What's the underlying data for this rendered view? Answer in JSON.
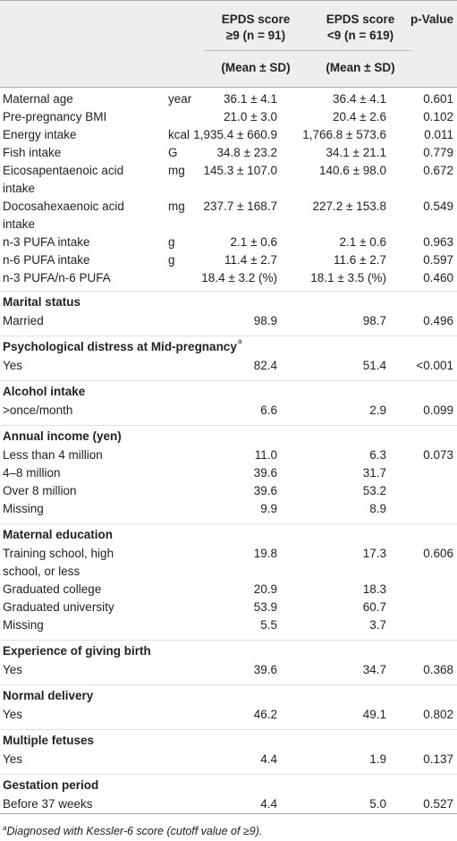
{
  "header": {
    "col1_line1": "EPDS score",
    "col1_line2": "≥9 (n = 91)",
    "col2_line1": "EPDS score",
    "col2_line2": "<9 (n = 619)",
    "col3": "p-Value",
    "sub1": "(Mean ± SD)",
    "sub2": "(Mean ± SD)"
  },
  "rows": [
    {
      "label": "Maternal age",
      "unit": "year",
      "v1": "36.1 ± 4.1",
      "v2": "36.4 ± 4.1",
      "p": "0.601"
    },
    {
      "label": "Pre-pregnancy BMI",
      "unit": "",
      "v1": "21.0 ± 3.0",
      "v2": "20.4 ± 2.6",
      "p": "0.102"
    },
    {
      "label": "Energy intake",
      "unit": "kcal",
      "v1": "1,935.4 ± 660.9",
      "v2": "1,766.8 ± 573.6",
      "p": "0.011"
    },
    {
      "label": "Fish intake",
      "unit": "G",
      "v1": "34.8 ± 23.2",
      "v2": "34.1 ± 21.1",
      "p": "0.779"
    },
    {
      "label": "Eicosapentaenoic acid",
      "label2": "intake",
      "unit": "mg",
      "v1": "145.3 ± 107.0",
      "v2": "140.6 ± 98.0",
      "p": "0.672"
    },
    {
      "label": "Docosahexaenoic acid",
      "label2": "intake",
      "unit": "mg",
      "v1": "237.7 ± 168.7",
      "v2": "227.2 ± 153.8",
      "p": "0.549"
    },
    {
      "label": "n-3 PUFA intake",
      "unit": "g",
      "v1": "2.1 ± 0.6",
      "v2": "2.1 ± 0.6",
      "p": "0.963"
    },
    {
      "label": "n-6 PUFA intake",
      "unit": "g",
      "v1": "11.4 ± 2.7",
      "v2": "11.6 ± 2.7",
      "p": "0.597"
    },
    {
      "label": "n-3 PUFA/n-6 PUFA",
      "unit": "",
      "v1": "18.4 ± 3.2 (%)",
      "v2": "18.1 ± 3.5 (%)",
      "p": "0.460"
    }
  ],
  "sections": [
    {
      "title": "Marital status",
      "rows": [
        {
          "label": "Married",
          "v1": "98.9",
          "v2": "98.7",
          "p": "0.496"
        }
      ]
    },
    {
      "title": "Psychological distress at Mid-pregnancy",
      "sup": "a",
      "rows": [
        {
          "label": "Yes",
          "v1": "82.4",
          "v2": "51.4",
          "p": "<0.001"
        }
      ]
    },
    {
      "title": "Alcohol intake",
      "rows": [
        {
          "label": ">once/month",
          "v1": "6.6",
          "v2": "2.9",
          "p": "0.099"
        }
      ]
    },
    {
      "title": "Annual income (yen)",
      "rows": [
        {
          "label": "Less than 4 million",
          "v1": "11.0",
          "v2": "6.3",
          "p": "0.073"
        },
        {
          "label": "4–8 million",
          "v1": "39.6",
          "v2": "31.7",
          "p": ""
        },
        {
          "label": "Over 8 million",
          "v1": "39.6",
          "v2": "53.2",
          "p": ""
        },
        {
          "label": "Missing",
          "v1": "9.9",
          "v2": "8.9",
          "p": ""
        }
      ]
    },
    {
      "title": "Maternal education",
      "rows": [
        {
          "label": "Training school, high",
          "label2": "school, or less",
          "v1": "19.8",
          "v2": "17.3",
          "p": "0.606"
        },
        {
          "label": "Graduated college",
          "v1": "20.9",
          "v2": "18.3",
          "p": ""
        },
        {
          "label": "Graduated university",
          "v1": "53.9",
          "v2": "60.7",
          "p": ""
        },
        {
          "label": "Missing",
          "v1": "5.5",
          "v2": "3.7",
          "p": ""
        }
      ]
    },
    {
      "title": "Experience of giving birth",
      "rows": [
        {
          "label": "Yes",
          "v1": "39.6",
          "v2": "34.7",
          "p": "0.368"
        }
      ]
    },
    {
      "title": "Normal delivery",
      "rows": [
        {
          "label": "Yes",
          "v1": "46.2",
          "v2": "49.1",
          "p": "0.802"
        }
      ]
    },
    {
      "title": "Multiple fetuses",
      "rows": [
        {
          "label": "Yes",
          "v1": "4.4",
          "v2": "1.9",
          "p": "0.137"
        }
      ]
    },
    {
      "title": "Gestation period",
      "rows": [
        {
          "label": "Before 37 weeks",
          "v1": "4.4",
          "v2": "5.0",
          "p": "0.527"
        }
      ]
    }
  ],
  "footnote": {
    "sup": "a",
    "text": "Diagnosed with Kessler-6 score (cutoff value of ≥9)."
  }
}
